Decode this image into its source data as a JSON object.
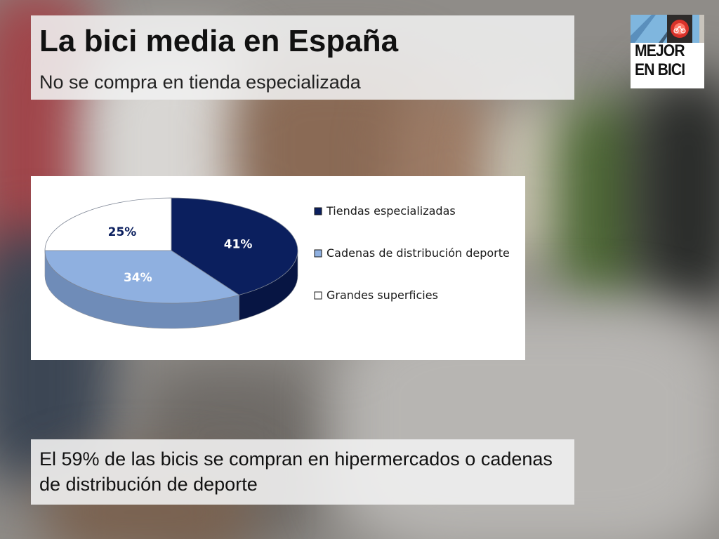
{
  "slide": {
    "title": "La bici media en España",
    "subtitle": "No se compra en tienda especializada",
    "footnote": "El 59% de las bicis se compran en hipermercados o cadenas de distribución de deporte"
  },
  "logo": {
    "text": "MEJOR EN BICI",
    "line1": "MEJOR",
    "line2": "EN BICI",
    "icon": "bike-traffic-light-icon"
  },
  "chart_data": {
    "type": "pie",
    "title": "",
    "categories": [
      "Tiendas especializadas",
      "Cadenas de distribución deporte",
      "Grandes superficies"
    ],
    "values": [
      41,
      34,
      25
    ],
    "labels": [
      "41%",
      "34%",
      "25%"
    ],
    "colors": [
      "#0b1f5e",
      "#8fb0e0",
      "#ffffff"
    ],
    "legend_position": "right"
  }
}
